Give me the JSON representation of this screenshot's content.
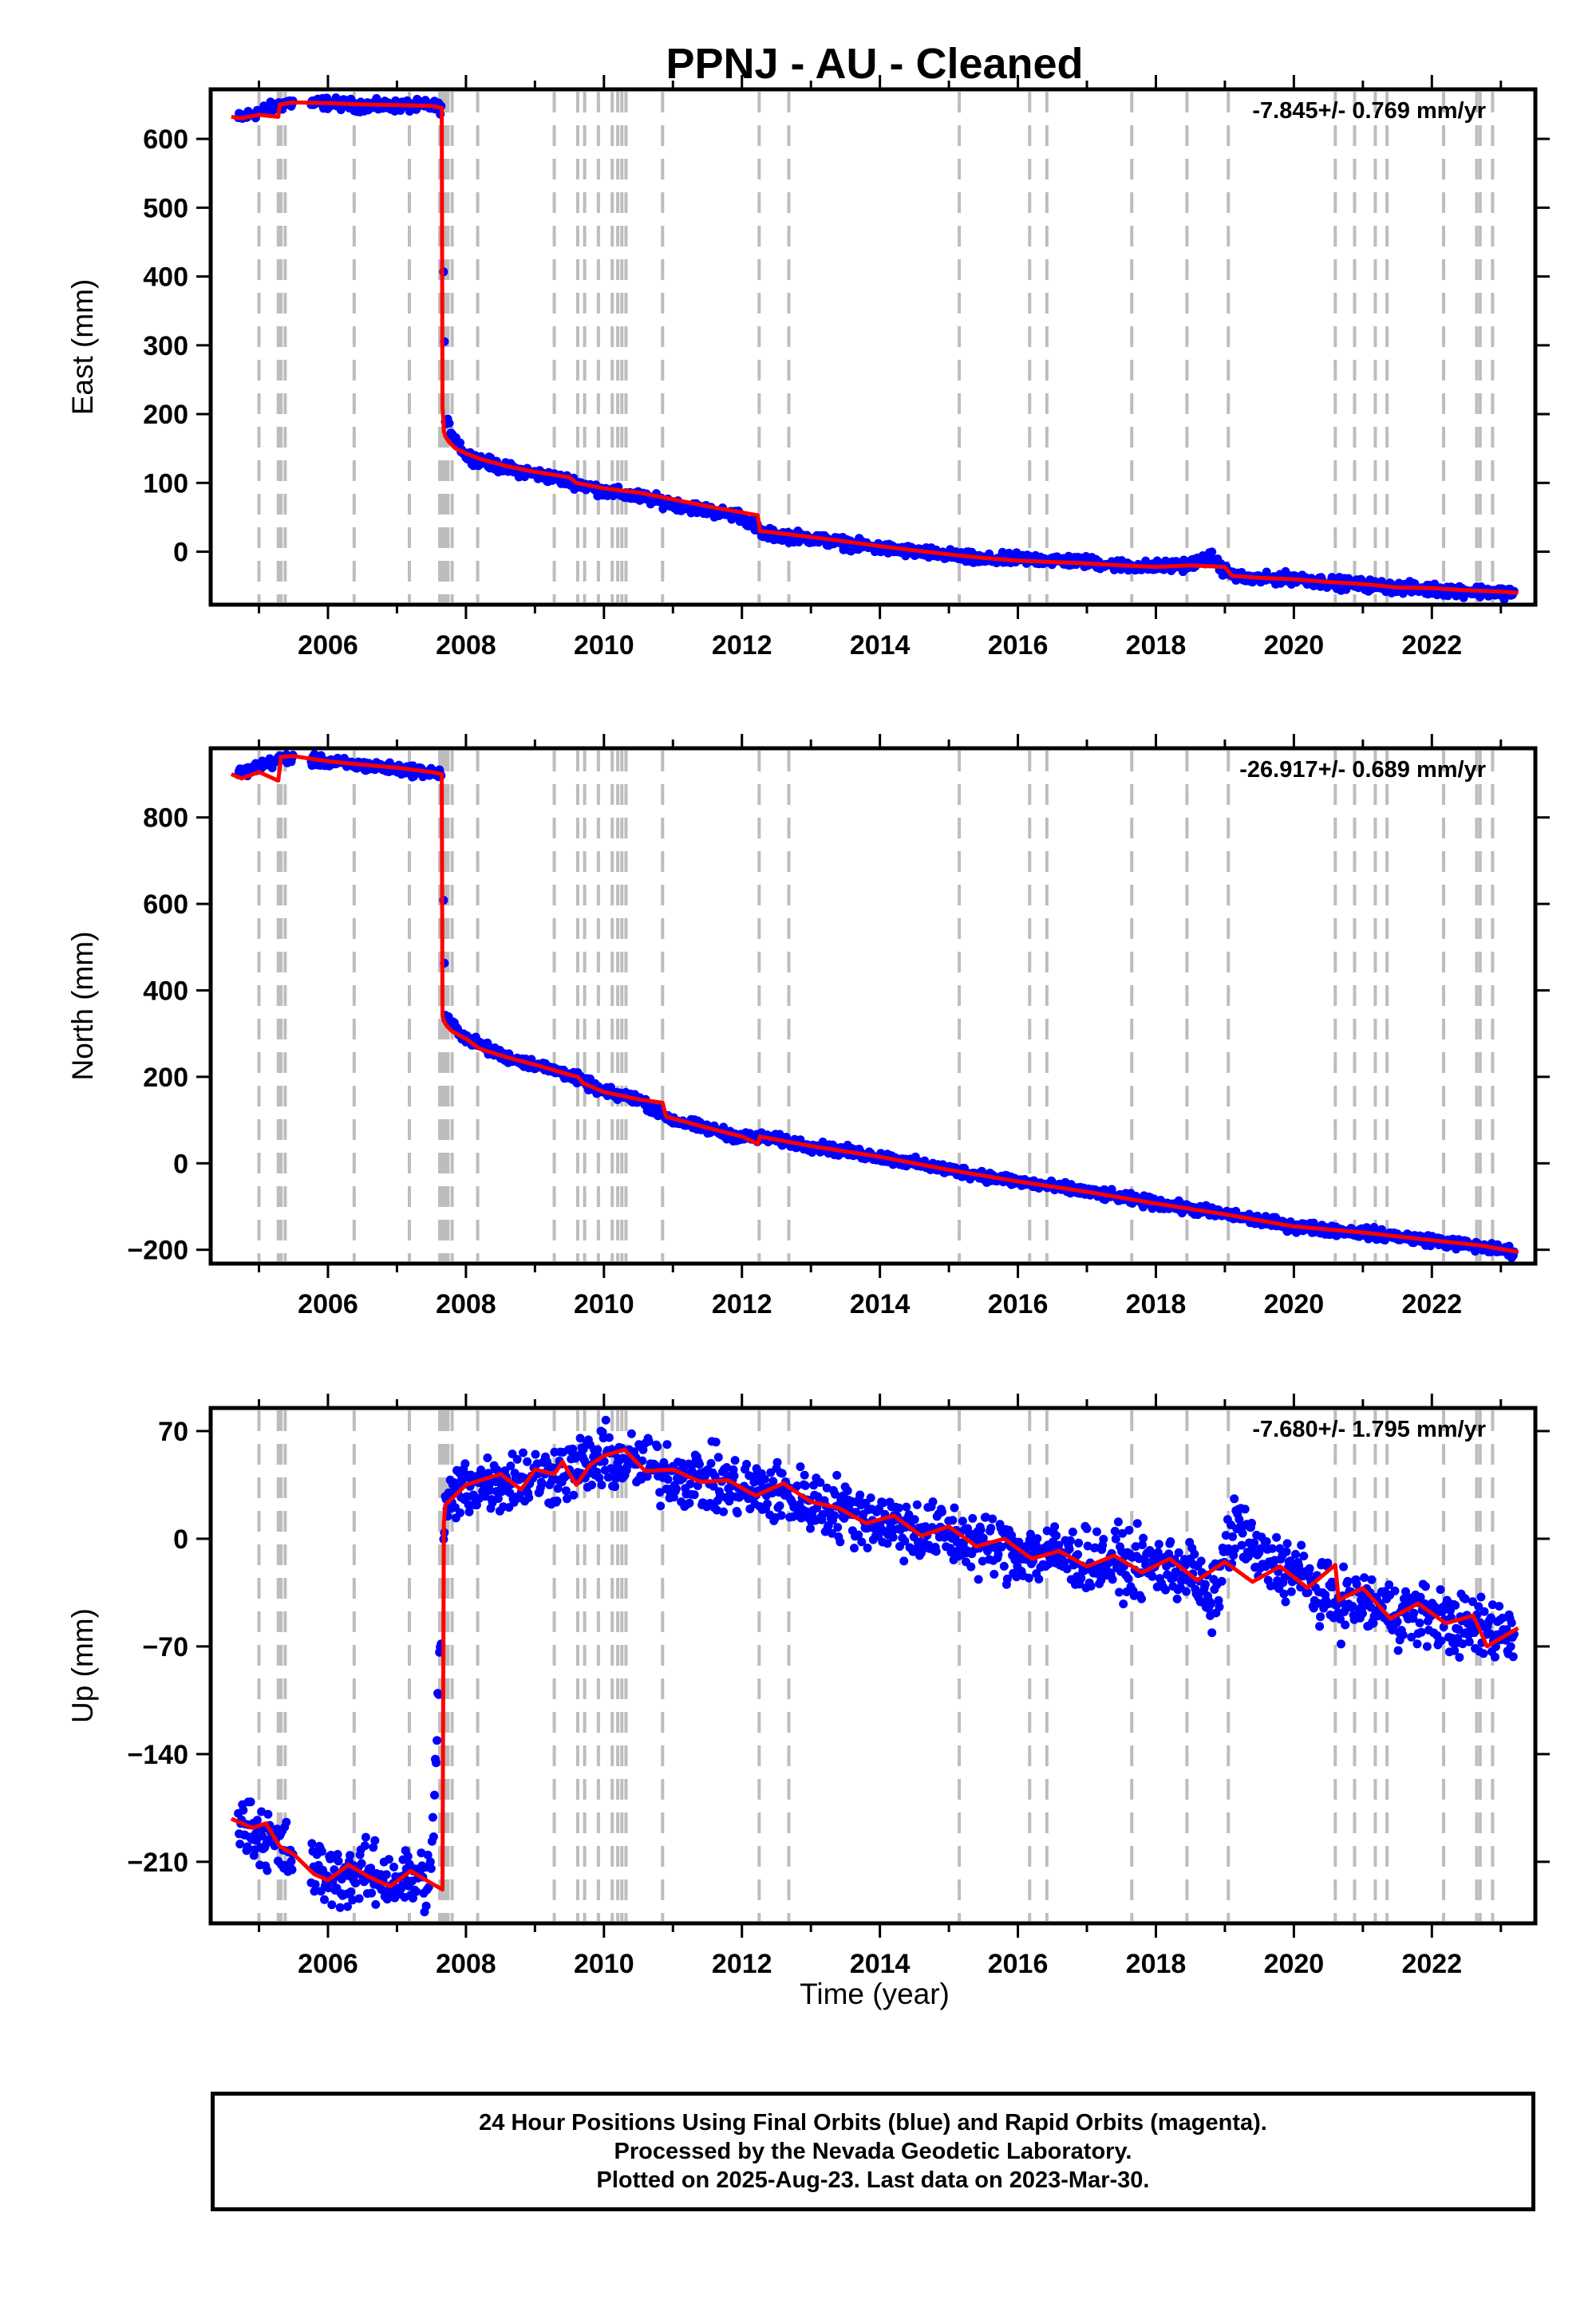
{
  "title": "PPNJ  - AU - Cleaned",
  "xlabel": "Time (year)",
  "footer": {
    "line1": "24 Hour Positions Using Final Orbits (blue) and Rapid Orbits (magenta).",
    "line2": "Processed by the Nevada Geodetic Laboratory.",
    "line3": "Plotted on 2025-Aug-23. Last data on 2023-Mar-30."
  },
  "colors": {
    "points": "#0000ff",
    "model": "#ff0000",
    "events": "#bdbdbd",
    "axes": "#000000"
  },
  "event_years": [
    2005.0,
    2005.28,
    2005.32,
    2005.38,
    2006.38,
    2007.18,
    2007.62,
    2007.64,
    2007.66,
    2007.68,
    2007.7,
    2007.72,
    2007.74,
    2007.8,
    2008.17,
    2009.28,
    2009.62,
    2009.72,
    2009.92,
    2010.12,
    2010.2,
    2010.26,
    2010.32,
    2010.85,
    2012.25,
    2012.68,
    2015.15,
    2016.17,
    2016.42,
    2017.65,
    2018.45,
    2019.05,
    2020.6,
    2020.88,
    2021.18,
    2021.35,
    2022.17,
    2022.65,
    2022.7,
    2022.88
  ],
  "chart_data": [
    {
      "type": "scatter",
      "ylabel": "East (mm)",
      "rate": "-7.845+/- 0.769 mm/yr",
      "xlim": [
        2004.3,
        2023.5
      ],
      "ylim": [
        -77,
        672
      ],
      "xticks": [
        2006,
        2008,
        2010,
        2012,
        2014,
        2016,
        2018,
        2020,
        2022
      ],
      "yticks": [
        0,
        100,
        200,
        300,
        400,
        500,
        600
      ],
      "scatter_amp": 4,
      "series": [
        {
          "kind": "model",
          "x": [
            2004.6,
            2004.75,
            2005.0,
            2005.28,
            2005.3,
            2005.5,
            2006.0,
            2006.5,
            2007.0,
            2007.5,
            2007.65,
            2007.66,
            2007.67,
            2007.68,
            2007.7,
            2007.75,
            2007.85,
            2008.0,
            2008.2,
            2008.6,
            2009.0,
            2009.5,
            2009.6,
            2010.0,
            2010.5,
            2011.0,
            2011.5,
            2012.0,
            2012.23,
            2012.26,
            2012.7,
            2013.5,
            2014.0,
            2014.5,
            2015.0,
            2015.5,
            2016.0,
            2016.5,
            2017.0,
            2017.5,
            2018.0,
            2018.5,
            2019.0,
            2019.1,
            2019.5,
            2020.0,
            2020.5,
            2021.0,
            2021.5,
            2022.0,
            2022.5,
            2023.0,
            2023.25
          ],
          "y": [
            632,
            630,
            635,
            632,
            650,
            653,
            652,
            650,
            649,
            648,
            645,
            210,
            195,
            175,
            168,
            160,
            150,
            143,
            135,
            124,
            116,
            108,
            100,
            92,
            86,
            76,
            66,
            57,
            53,
            30,
            25,
            15,
            8,
            2,
            -4,
            -9,
            -13,
            -15,
            -17,
            -20,
            -22,
            -20,
            -22,
            -35,
            -38,
            -40,
            -44,
            -47,
            -52,
            -53,
            -56,
            -58,
            -60
          ]
        },
        {
          "kind": "observed",
          "x": [
            2004.7,
            2005.4,
            2006.0,
            2006.5,
            2007.0,
            2007.5,
            2007.65,
            2007.7,
            2008.0,
            2008.5,
            2009.0,
            2009.5,
            2010.0,
            2010.5,
            2011.0,
            2011.5,
            2012.0,
            2012.3,
            2013.0,
            2013.5,
            2014.0,
            2014.5,
            2015.0,
            2015.5,
            2016.0,
            2016.5,
            2017.0,
            2017.5,
            2018.0,
            2018.5,
            2018.8,
            2019.0,
            2019.2,
            2019.5,
            2020.0,
            2020.5,
            2021.0,
            2021.5,
            2022.0,
            2022.5,
            2023.2
          ],
          "y": [
            630,
            652,
            652,
            648,
            648,
            648,
            645,
            190,
            140,
            123,
            113,
            103,
            88,
            80,
            70,
            60,
            52,
            26,
            20,
            12,
            5,
            0,
            -5,
            -12,
            -10,
            -12,
            -15,
            -20,
            -22,
            -18,
            -8,
            -28,
            -38,
            -40,
            -38,
            -45,
            -48,
            -52,
            -55,
            -57,
            -60
          ]
        }
      ]
    },
    {
      "type": "scatter",
      "ylabel": "North (mm)",
      "rate": "-26.917+/- 0.689 mm/yr",
      "xlim": [
        2004.3,
        2023.5
      ],
      "ylim": [
        -232,
        960
      ],
      "xticks": [
        2006,
        2008,
        2010,
        2012,
        2014,
        2016,
        2018,
        2020,
        2022
      ],
      "yticks": [
        -200,
        0,
        200,
        400,
        600,
        800
      ],
      "scatter_amp": 6,
      "series": [
        {
          "kind": "model",
          "x": [
            2004.6,
            2004.75,
            2005.0,
            2005.28,
            2005.32,
            2005.5,
            2006.0,
            2006.5,
            2007.0,
            2007.5,
            2007.65,
            2007.66,
            2007.68,
            2007.72,
            2007.8,
            2008.0,
            2008.2,
            2008.6,
            2009.0,
            2009.5,
            2009.62,
            2009.7,
            2010.0,
            2010.5,
            2010.85,
            2010.9,
            2011.5,
            2012.0,
            2012.23,
            2012.26,
            2013.0,
            2014.0,
            2015.0,
            2016.0,
            2017.0,
            2018.0,
            2019.0,
            2020.0,
            2021.0,
            2022.0,
            2022.7,
            2023.25
          ],
          "y": [
            900,
            890,
            905,
            885,
            940,
            942,
            930,
            922,
            915,
            905,
            900,
            340,
            330,
            318,
            305,
            288,
            265,
            245,
            228,
            205,
            200,
            185,
            165,
            148,
            140,
            108,
            82,
            62,
            45,
            62,
            40,
            15,
            -15,
            -42,
            -66,
            -93,
            -118,
            -146,
            -160,
            -178,
            -190,
            -205
          ]
        },
        {
          "kind": "observed",
          "x": [
            2004.7,
            2005.4,
            2006.0,
            2006.5,
            2007.0,
            2007.5,
            2007.65,
            2007.7,
            2008.0,
            2008.5,
            2009.0,
            2009.5,
            2010.0,
            2010.5,
            2011.0,
            2011.5,
            2012.0,
            2012.3,
            2013.0,
            2014.0,
            2015.0,
            2016.0,
            2017.0,
            2018.0,
            2019.0,
            2020.0,
            2021.0,
            2022.0,
            2023.2
          ],
          "y": [
            902,
            938,
            928,
            920,
            912,
            904,
            900,
            335,
            290,
            250,
            228,
            205,
            165,
            148,
            100,
            80,
            60,
            60,
            40,
            15,
            -15,
            -42,
            -66,
            -93,
            -118,
            -146,
            -160,
            -178,
            -205
          ]
        }
      ]
    },
    {
      "type": "scatter",
      "ylabel": "Up (mm)",
      "rate": "-7.680+/- 1.795 mm/yr",
      "xlim": [
        2004.3,
        2023.5
      ],
      "ylim": [
        -250,
        85
      ],
      "xticks": [
        2006,
        2008,
        2010,
        2012,
        2014,
        2016,
        2018,
        2020,
        2022
      ],
      "yticks": [
        -210,
        -140,
        -70,
        0,
        70
      ],
      "scatter_amp": 10,
      "series": [
        {
          "kind": "model",
          "x": [
            2004.6,
            2004.9,
            2005.1,
            2005.3,
            2005.5,
            2005.8,
            2006.0,
            2006.3,
            2006.6,
            2006.9,
            2007.2,
            2007.5,
            2007.66,
            2007.68,
            2007.7,
            2008.0,
            2008.5,
            2008.8,
            2009.0,
            2009.28,
            2009.4,
            2009.6,
            2009.8,
            2010.0,
            2010.3,
            2010.6,
            2011.0,
            2011.4,
            2011.8,
            2012.2,
            2012.6,
            2013.0,
            2013.4,
            2013.8,
            2014.2,
            2014.6,
            2015.0,
            2015.4,
            2015.8,
            2016.2,
            2016.6,
            2017.0,
            2017.4,
            2017.8,
            2018.2,
            2018.6,
            2019.0,
            2019.4,
            2019.8,
            2020.2,
            2020.6,
            2020.65,
            2021.0,
            2021.4,
            2021.8,
            2022.2,
            2022.6,
            2022.8,
            2023.25
          ],
          "y": [
            -182,
            -188,
            -185,
            -200,
            -205,
            -218,
            -222,
            -212,
            -220,
            -226,
            -216,
            -224,
            -228,
            10,
            22,
            35,
            42,
            32,
            45,
            42,
            50,
            35,
            48,
            54,
            58,
            44,
            45,
            37,
            38,
            28,
            36,
            24,
            20,
            10,
            15,
            2,
            8,
            -5,
            0,
            -13,
            -8,
            -18,
            -11,
            -22,
            -13,
            -27,
            -15,
            -28,
            -18,
            -32,
            -17,
            -40,
            -32,
            -52,
            -42,
            -55,
            -50,
            -70,
            -58
          ]
        },
        {
          "kind": "observed",
          "x": [
            2004.7,
            2005.0,
            2005.4,
            2006.0,
            2006.5,
            2007.0,
            2007.5,
            2007.7,
            2008.0,
            2008.5,
            2009.0,
            2009.5,
            2010.0,
            2010.5,
            2011.0,
            2011.5,
            2012.0,
            2012.5,
            2013.0,
            2013.5,
            2014.0,
            2014.5,
            2015.0,
            2015.5,
            2016.0,
            2016.5,
            2017.0,
            2017.5,
            2018.0,
            2018.5,
            2018.8,
            2019.0,
            2019.2,
            2019.5,
            2020.0,
            2020.5,
            2021.0,
            2021.5,
            2022.0,
            2022.5,
            2023.2
          ],
          "y": [
            -185,
            -190,
            -205,
            -220,
            -218,
            -222,
            -220,
            20,
            35,
            38,
            40,
            45,
            52,
            48,
            42,
            38,
            32,
            30,
            24,
            18,
            12,
            6,
            2,
            -4,
            -8,
            -10,
            -14,
            -16,
            -18,
            -20,
            -45,
            -10,
            10,
            -15,
            -20,
            -40,
            -42,
            -48,
            -50,
            -58,
            -60
          ]
        }
      ]
    }
  ]
}
